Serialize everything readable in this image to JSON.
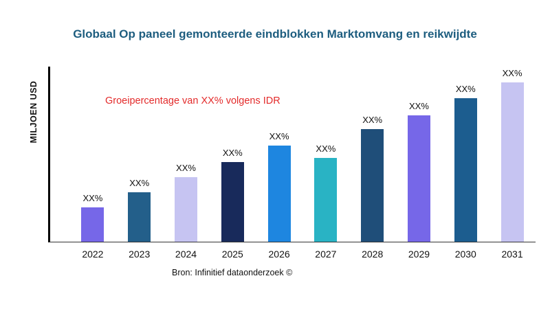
{
  "chart_data": {
    "type": "bar",
    "title": "Globaal Op paneel gemonteerde eindblokken Marktomvang en reikwijdte",
    "title_color": "#1d5d7f",
    "ylabel": "MILJOEN USD",
    "xlabel": "",
    "categories": [
      "2022",
      "2023",
      "2024",
      "2025",
      "2026",
      "2027",
      "2028",
      "2029",
      "2030",
      "2031"
    ],
    "values": [
      50,
      72,
      94,
      116,
      140,
      122,
      164,
      184,
      209,
      232
    ],
    "ylim": [
      0,
      255
    ],
    "bar_labels": [
      "XX%",
      "XX%",
      "XX%",
      "XX%",
      "XX%",
      "XX%",
      "XX%",
      "XX%",
      "XX%",
      "XX%"
    ],
    "bar_colors": [
      "#7667E8",
      "#235F8A",
      "#C6C4F2",
      "#182A5B",
      "#1E86E0",
      "#29B3C4",
      "#1F4E79",
      "#7667E8",
      "#1C5D8F",
      "#C6C4F2"
    ],
    "annotation": "Groeipercentage van XX% volgens IDR",
    "annotation_color": "#e32a2a",
    "grid": false,
    "legend": false,
    "source": "Bron: Infinitief dataonderzoek ©"
  }
}
